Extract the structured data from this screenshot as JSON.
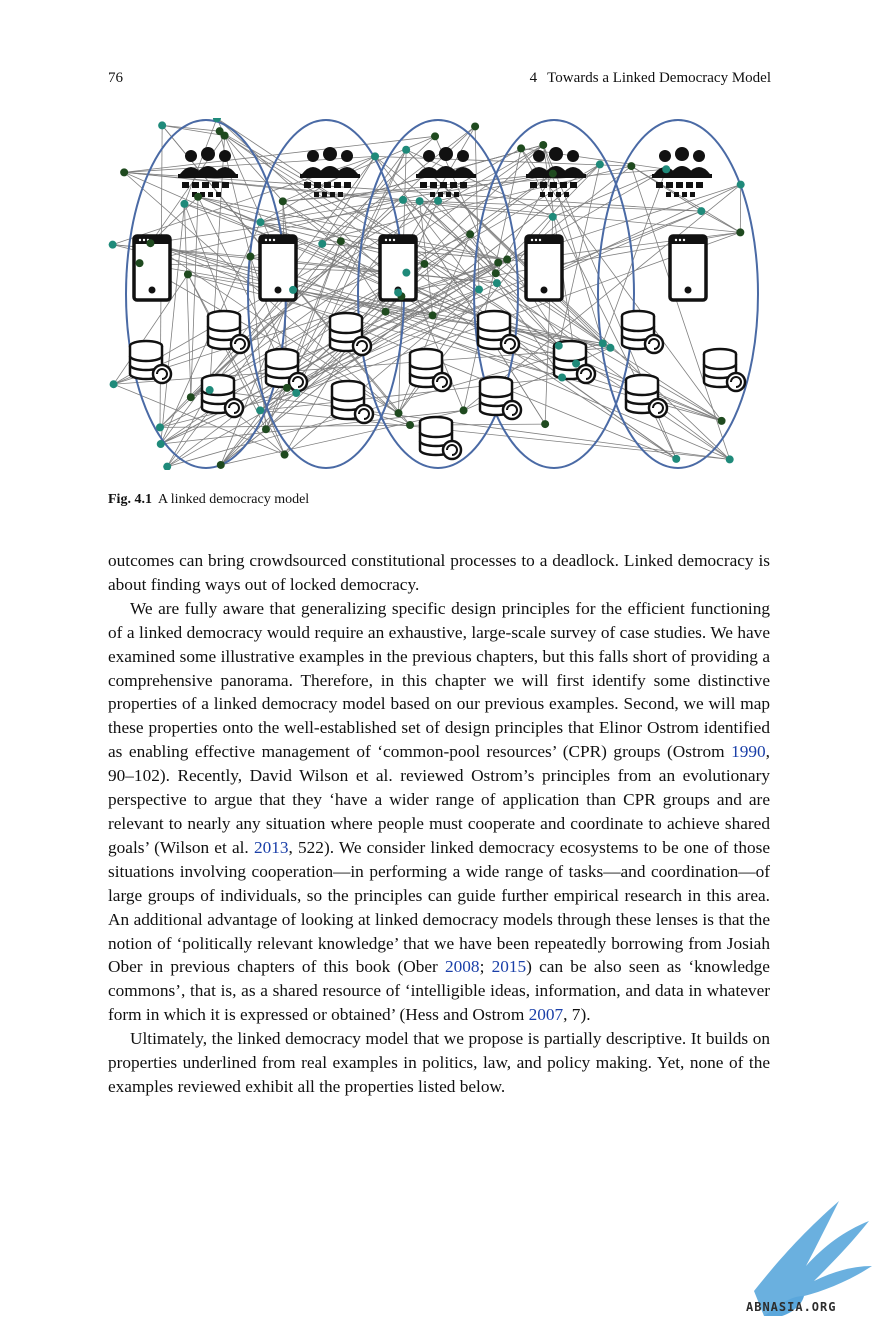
{
  "header": {
    "page_number": "76",
    "chapter_number": "4",
    "chapter_title": "Towards a Linked Democracy Model"
  },
  "figure": {
    "label": "Fig. 4.1",
    "caption": "A linked democracy model",
    "icon_types": [
      "people-group-icon",
      "smartphone-icon",
      "database-sync-icon"
    ],
    "colors": {
      "ellipse": "#4a6aa5",
      "node_dark": "#1f4a1f",
      "node_teal": "#1f8a7a",
      "line": "#555555"
    }
  },
  "body": {
    "p1": "outcomes can bring crowdsourced constitutional processes to a deadlock. Linked democracy is about finding ways out of locked democracy.",
    "p2_a": "We are fully aware that generalizing specific design principles for the efficient functioning of a linked democracy would require an exhaustive, large-scale survey of case studies. We have examined some illustrative examples in the previous chapters, but this falls short of providing a comprehensive panorama. Therefore, in this chapter we will first identify some distinctive properties of a linked democracy model based on our previous examples. Second, we will map these properties onto the well-established set of design principles that Elinor Ostrom identified as enabling effective management of ‘common-pool resources’ (CPR) groups (Ostrom ",
    "ref1": "1990",
    "p2_b": ", 90–102). Recently, David Wilson et al. reviewed Ostrom’s principles from an evolutionary perspective to argue that they ‘have a wider range of application than CPR groups and are relevant to nearly any situation where people must cooperate and coordinate to achieve shared goals’ (Wilson et al. ",
    "ref2": "2013",
    "p2_c": ", 522). We consider linked democracy ecosystems to be one of those situations involving cooperation—in performing a wide range of tasks—and coordination—of large groups of individuals, so the principles can guide further empirical research in this area. An additional advantage of looking at linked democracy models through these lenses is that the notion of ‘politically relevant knowledge’ that we have been repeatedly borrowing from Josiah Ober in previous chapters of this book (Ober ",
    "ref3": "2008",
    "sep3": "; ",
    "ref4": "2015",
    "p2_d": ") can be also seen as ‘knowledge commons’, that is, as a shared resource of ‘intelligible ideas, information, and data in whatever form in which it is expressed or obtained’ (Hess and Ostrom ",
    "ref5": "2007",
    "p2_e": ", 7).",
    "p3": "Ultimately, the linked democracy model that we propose is partially descriptive. It builds on properties underlined from real examples in politics, law, and policy making. Yet, none of the examples reviewed exhibit all the properties listed below."
  },
  "watermark": {
    "text": "ABNASIA.ORG",
    "color": "#5aa7dc"
  }
}
